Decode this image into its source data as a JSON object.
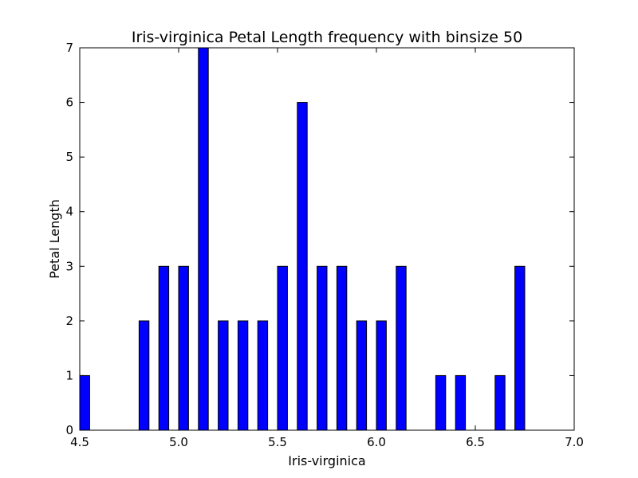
{
  "chart_data": {
    "type": "bar",
    "title": "Iris-virginica Petal Length frequency with binsize 50",
    "xlabel": "Iris-virginica",
    "ylabel": "Petal Length",
    "xlim": [
      4.5,
      7.0
    ],
    "ylim": [
      0,
      7
    ],
    "xticks": [
      "4.5",
      "5.0",
      "5.5",
      "6.0",
      "6.5",
      "7.0"
    ],
    "yticks": [
      "0",
      "1",
      "2",
      "3",
      "4",
      "5",
      "6",
      "7"
    ],
    "bar_color": "#0000ff",
    "grid": false,
    "bars": [
      {
        "x": 4.5,
        "value": 1
      },
      {
        "x": 4.8,
        "value": 2
      },
      {
        "x": 4.9,
        "value": 3
      },
      {
        "x": 5.0,
        "value": 3
      },
      {
        "x": 5.1,
        "value": 7
      },
      {
        "x": 5.2,
        "value": 2
      },
      {
        "x": 5.3,
        "value": 2
      },
      {
        "x": 5.4,
        "value": 2
      },
      {
        "x": 5.5,
        "value": 3
      },
      {
        "x": 5.6,
        "value": 6
      },
      {
        "x": 5.7,
        "value": 3
      },
      {
        "x": 5.8,
        "value": 3
      },
      {
        "x": 5.9,
        "value": 2
      },
      {
        "x": 6.0,
        "value": 2
      },
      {
        "x": 6.1,
        "value": 3
      },
      {
        "x": 6.3,
        "value": 1
      },
      {
        "x": 6.4,
        "value": 1
      },
      {
        "x": 6.6,
        "value": 1
      },
      {
        "x": 6.7,
        "value": 3
      }
    ]
  }
}
